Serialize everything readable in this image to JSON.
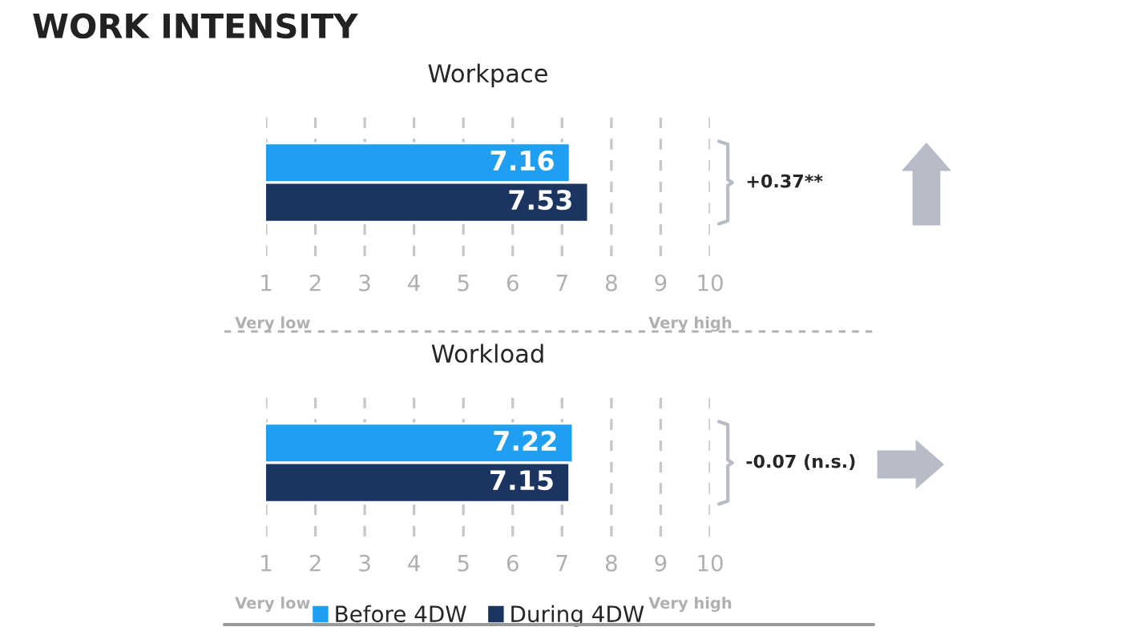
{
  "chart_data": [
    {
      "type": "bar",
      "title": "WORK INTENSITY",
      "subtitle": "Workpace",
      "orientation": "horizontal",
      "categories": [
        null
      ],
      "series": [
        {
          "color": "#1e9ff2",
          "values": [
            7.16
          ]
        },
        {
          "color": "#1b3460",
          "values": [
            7.53
          ]
        }
      ],
      "xlim": [
        1,
        10
      ],
      "xticks": [
        1,
        2,
        3,
        4,
        5,
        6,
        7,
        8,
        9,
        10
      ],
      "grid": "x",
      "data_labels": true,
      "legend": false,
      "annotations": [
        "+0.37**",
        "Very low",
        "Very high"
      ]
    },
    {
      "type": "bar",
      "title": "Workload",
      "orientation": "horizontal",
      "categories": [
        null
      ],
      "series": [
        {
          "name": "Before 4DW",
          "color": "#1e9ff2",
          "values": [
            7.22
          ]
        },
        {
          "name": "During 4DW",
          "color": "#1b3460",
          "values": [
            7.15
          ]
        }
      ],
      "xlim": [
        1,
        10
      ],
      "xticks": [
        1,
        2,
        3,
        4,
        5,
        6,
        7,
        8,
        9,
        10
      ],
      "grid": "x",
      "data_labels": true,
      "legend": "bottom",
      "annotations": [
        "-0.07 (n.s.)",
        "Very low",
        "Very high"
      ]
    }
  ]
}
